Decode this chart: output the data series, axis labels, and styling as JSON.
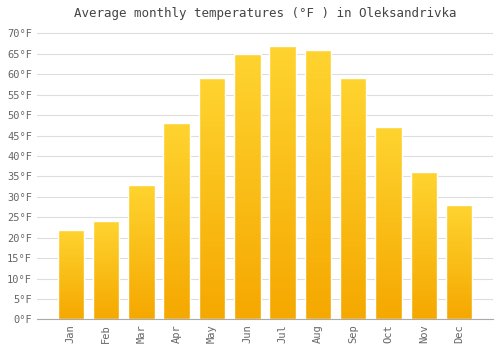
{
  "title": "Average monthly temperatures (°F ) in Oleksandrivka",
  "months": [
    "Jan",
    "Feb",
    "Mar",
    "Apr",
    "May",
    "Jun",
    "Jul",
    "Aug",
    "Sep",
    "Oct",
    "Nov",
    "Dec"
  ],
  "values": [
    22,
    24,
    33,
    48,
    59,
    65,
    67,
    66,
    59,
    47,
    36,
    28
  ],
  "bar_color_top": "#FFC93E",
  "bar_color_bottom": "#F5A800",
  "bar_edge_color": "#FFFFFF",
  "background_color": "#FFFFFF",
  "grid_color": "#DDDDDD",
  "ylim": [
    0,
    72
  ],
  "yticks": [
    0,
    5,
    10,
    15,
    20,
    25,
    30,
    35,
    40,
    45,
    50,
    55,
    60,
    65,
    70
  ],
  "title_fontsize": 9,
  "tick_fontsize": 7.5,
  "title_color": "#444444",
  "tick_label_color": "#666666"
}
